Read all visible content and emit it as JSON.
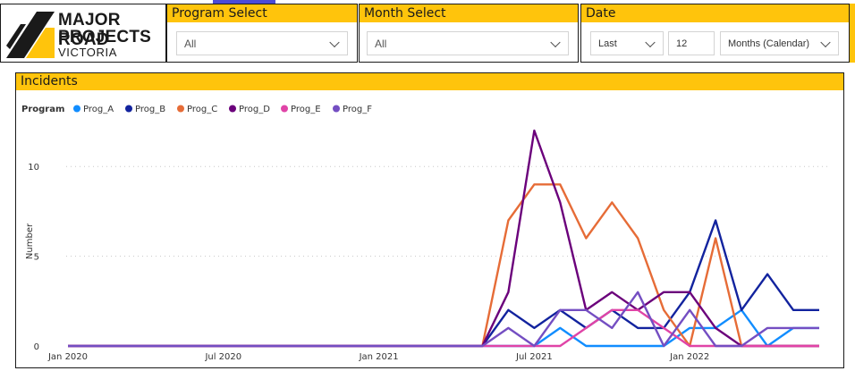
{
  "logo": {
    "line1": "MAJOR ROAD",
    "line2": "PROJECTS",
    "line3": "VICTORIA",
    "colors": {
      "yellow": "#ffc40c",
      "dark": "#1a1a1a"
    }
  },
  "slicers": {
    "program": {
      "title": "Program Select",
      "value": "All"
    },
    "month": {
      "title": "Month Select",
      "value": "All"
    },
    "date": {
      "title": "Date",
      "period": "Last",
      "count": "12",
      "unit": "Months (Calendar)"
    }
  },
  "theme": {
    "accent": "#ffc40c",
    "tab_indicator": "#4b4bd8"
  },
  "incidents": {
    "title": "Incidents",
    "legend_title": "Program"
  },
  "chart_data": {
    "type": "line",
    "title": "Incidents",
    "xlabel": "",
    "ylabel": "Number",
    "ylim": [
      0,
      13
    ],
    "yticks": [
      0,
      5,
      10
    ],
    "grid": "horizontal dotted",
    "legend": "top-left",
    "x": [
      "2020-01",
      "2020-02",
      "2020-03",
      "2020-04",
      "2020-05",
      "2020-06",
      "2020-07",
      "2020-08",
      "2020-09",
      "2020-10",
      "2020-11",
      "2020-12",
      "2021-01",
      "2021-02",
      "2021-03",
      "2021-04",
      "2021-05",
      "2021-06",
      "2021-07",
      "2021-08",
      "2021-09",
      "2021-10",
      "2021-11",
      "2021-12",
      "2022-01",
      "2022-02",
      "2022-03",
      "2022-04",
      "2022-05",
      "2022-06"
    ],
    "xtick_labels": [
      {
        "x": "2020-01",
        "label": "Jan 2020"
      },
      {
        "x": "2020-07",
        "label": "Jul 2020"
      },
      {
        "x": "2021-01",
        "label": "Jan 2021"
      },
      {
        "x": "2021-07",
        "label": "Jul 2021"
      },
      {
        "x": "2022-01",
        "label": "Jan 2022"
      }
    ],
    "series": [
      {
        "name": "Prog_A",
        "color": "#118dff",
        "values": [
          0,
          0,
          0,
          0,
          0,
          0,
          0,
          0,
          0,
          0,
          0,
          0,
          0,
          0,
          0,
          0,
          0,
          0,
          0,
          1,
          0,
          0,
          0,
          0,
          1,
          1,
          2,
          0,
          1,
          1
        ]
      },
      {
        "name": "Prog_B",
        "color": "#12239e",
        "values": [
          0,
          0,
          0,
          0,
          0,
          0,
          0,
          0,
          0,
          0,
          0,
          0,
          0,
          0,
          0,
          0,
          0,
          2,
          1,
          2,
          1,
          2,
          1,
          1,
          3,
          7,
          2,
          4,
          2,
          2
        ]
      },
      {
        "name": "Prog_C",
        "color": "#e66c37",
        "values": [
          0,
          0,
          0,
          0,
          0,
          0,
          0,
          0,
          0,
          0,
          0,
          0,
          0,
          0,
          0,
          0,
          0,
          7,
          9,
          9,
          6,
          8,
          6,
          2,
          0,
          6,
          0,
          0,
          0,
          0
        ]
      },
      {
        "name": "Prog_D",
        "color": "#6b007b",
        "values": [
          0,
          0,
          0,
          0,
          0,
          0,
          0,
          0,
          0,
          0,
          0,
          0,
          0,
          0,
          0,
          0,
          0,
          3,
          12,
          8,
          2,
          3,
          2,
          3,
          3,
          1,
          0,
          0,
          0,
          0
        ]
      },
      {
        "name": "Prog_E",
        "color": "#e044a7",
        "values": [
          0,
          0,
          0,
          0,
          0,
          0,
          0,
          0,
          0,
          0,
          0,
          0,
          0,
          0,
          0,
          0,
          0,
          0,
          0,
          0,
          1,
          2,
          2,
          1,
          0,
          0,
          0,
          0,
          0,
          0
        ]
      },
      {
        "name": "Prog_F",
        "color": "#744ec2",
        "values": [
          0,
          0,
          0,
          0,
          0,
          0,
          0,
          0,
          0,
          0,
          0,
          0,
          0,
          0,
          0,
          0,
          0,
          1,
          0,
          2,
          2,
          1,
          3,
          0,
          2,
          0,
          0,
          1,
          1,
          1
        ]
      }
    ]
  }
}
